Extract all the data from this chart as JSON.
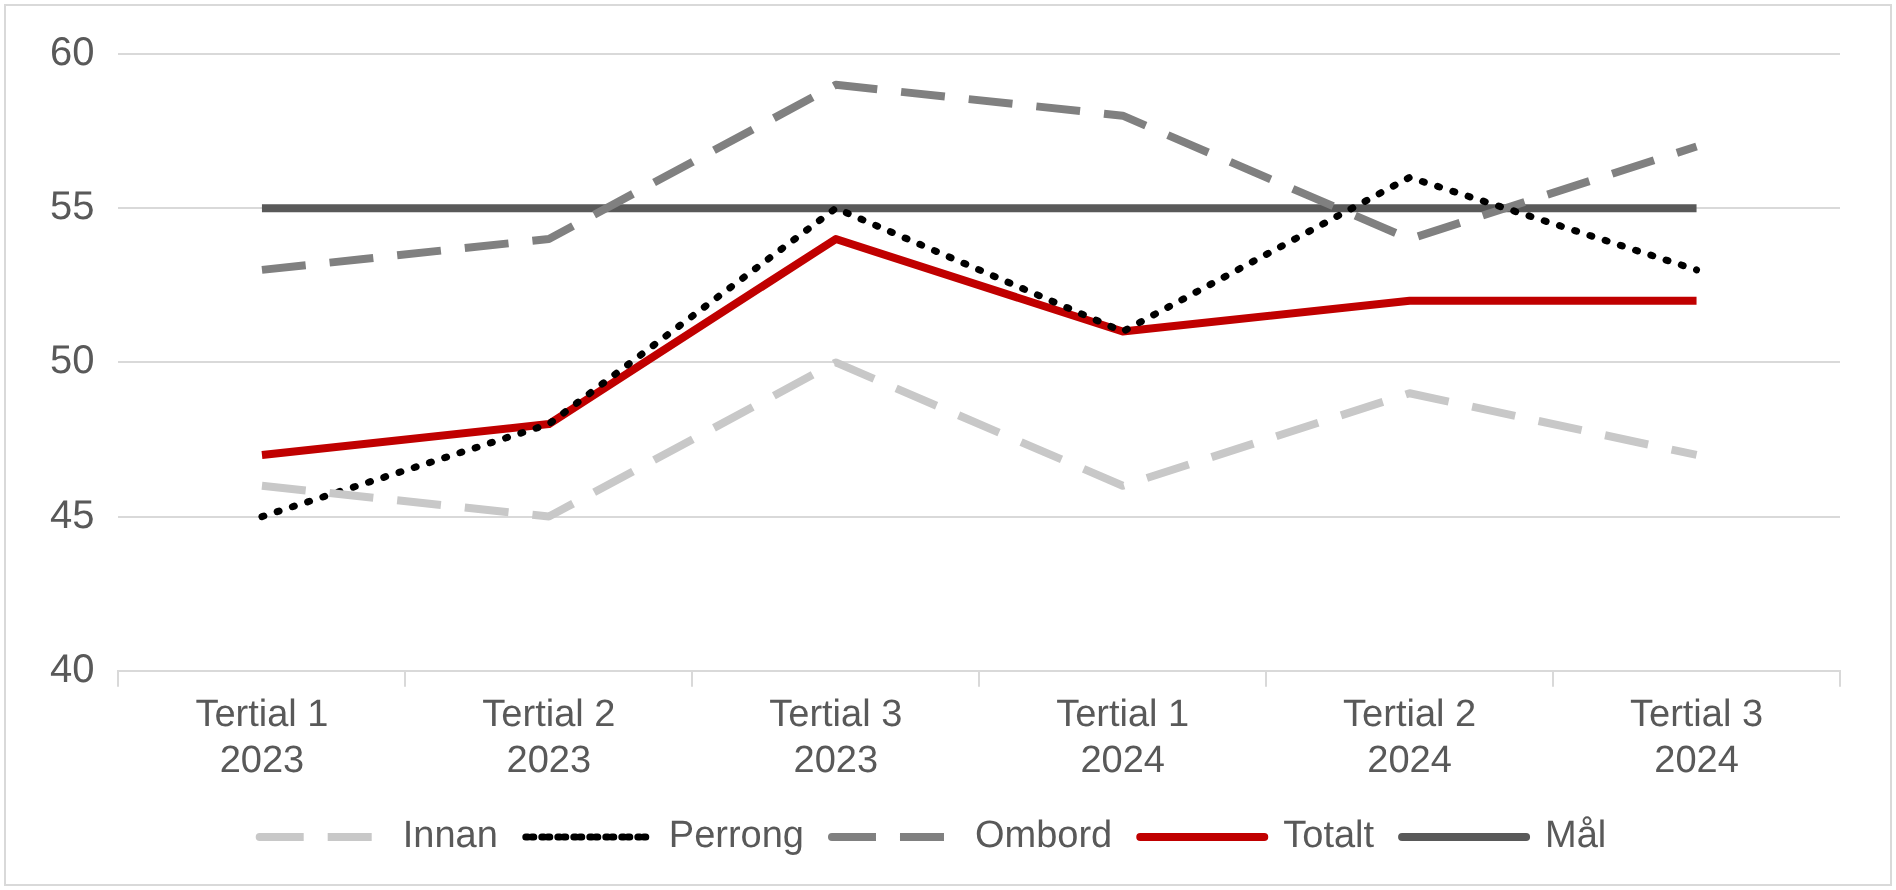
{
  "chart_data": {
    "type": "line",
    "categories": [
      "Tertial 1\n2023",
      "Tertial 2\n2023",
      "Tertial 3\n2023",
      "Tertial 1\n2024",
      "Tertial 2\n2024",
      "Tertial 3\n2024"
    ],
    "series": [
      {
        "name": "Innan",
        "color": "#c8c8c8",
        "line_style": "dashed",
        "values": [
          46,
          45,
          50,
          46,
          49,
          47
        ]
      },
      {
        "name": "Perrong",
        "color": "#000000",
        "line_style": "dotted",
        "values": [
          45,
          48,
          55,
          51,
          56,
          53
        ]
      },
      {
        "name": "Ombord",
        "color": "#808080",
        "line_style": "dashed",
        "values": [
          53,
          54,
          59,
          58,
          54,
          57
        ]
      },
      {
        "name": "Totalt",
        "color": "#c00000",
        "line_style": "solid",
        "values": [
          47,
          48,
          54,
          51,
          52,
          52
        ]
      },
      {
        "name": "Mål",
        "color": "#595959",
        "line_style": "solid",
        "values": [
          55,
          55,
          55,
          55,
          55,
          55
        ]
      }
    ],
    "ylim": [
      40,
      60
    ],
    "yticks": [
      40,
      45,
      50,
      55,
      60
    ],
    "grid": "y",
    "legend": "bottom",
    "marker": "none"
  }
}
